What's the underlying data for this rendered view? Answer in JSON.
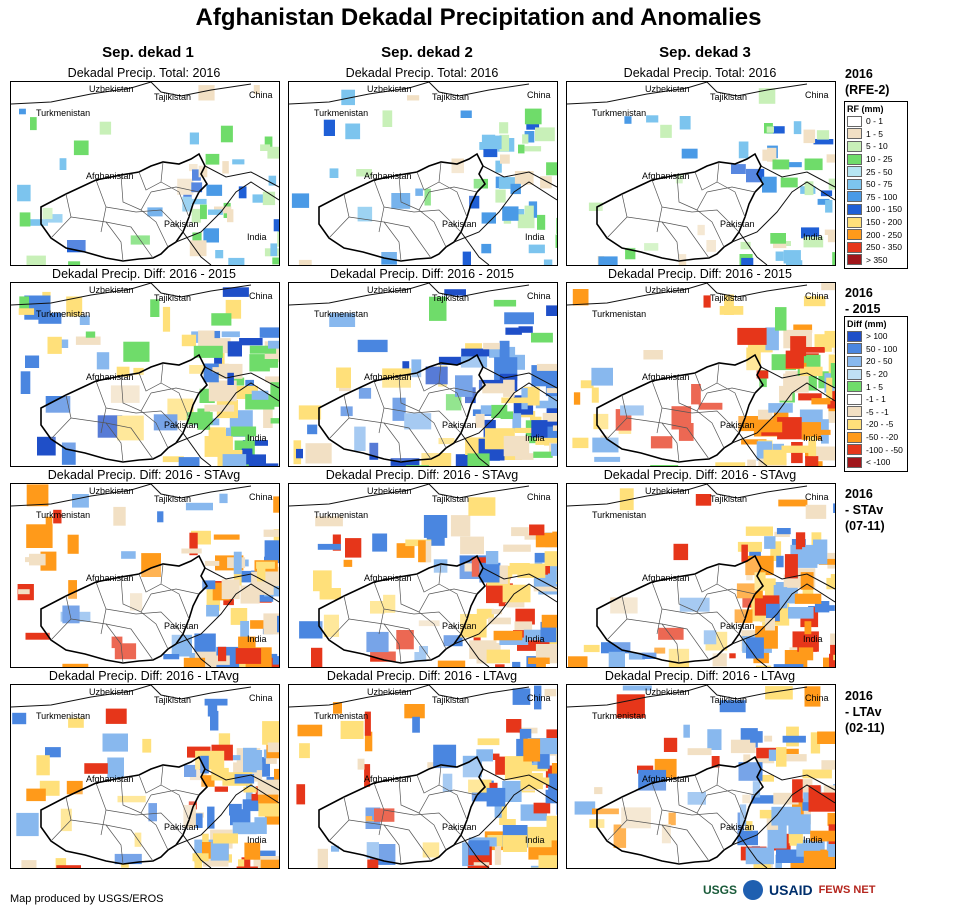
{
  "title": "Afghanistan Dekadal Precipitation and Anomalies",
  "columns": [
    "Sep. dekad 1",
    "Sep. dekad 2",
    "Sep. dekad 3"
  ],
  "rows": [
    {
      "caption": "Dekadal Precip. Total: 2016",
      "label_lines": [
        "2016",
        "(RFE-2)"
      ]
    },
    {
      "caption": "Dekadal Precip. Diff: 2016 - 2015",
      "label_lines": [
        "2016",
        "- 2015"
      ]
    },
    {
      "caption": "Dekadal Precip. Diff: 2016 - STAvg",
      "label_lines": [
        "2016",
        "- STAv",
        "(07-11)"
      ]
    },
    {
      "caption": "Dekadal Precip. Diff: 2016 - LTAvg",
      "label_lines": [
        "2016",
        "- LTAv",
        "(02-11)"
      ]
    }
  ],
  "country_labels": {
    "uzbekistan": "Uzbekistan",
    "tajikistan": "Tajikistan",
    "china": "China",
    "turkmenistan": "Turkmenistan",
    "afghanistan": "Afghanistan",
    "pakistan": "Pakistan",
    "india": "India"
  },
  "legend_rf": {
    "title": "RF (mm)",
    "items": [
      {
        "label": "0 - 1",
        "color": "#ffffff"
      },
      {
        "label": "1 - 5",
        "color": "#f2e0c4"
      },
      {
        "label": "5 - 10",
        "color": "#c8f0b8"
      },
      {
        "label": "10 - 25",
        "color": "#6fdc6a"
      },
      {
        "label": "25 - 50",
        "color": "#b6e6f2"
      },
      {
        "label": "50 - 75",
        "color": "#7cc4ee"
      },
      {
        "label": "75 - 100",
        "color": "#4a9ae6"
      },
      {
        "label": "100 - 150",
        "color": "#1f5fd6"
      },
      {
        "label": "150 - 200",
        "color": "#ffe07a"
      },
      {
        "label": "200 - 250",
        "color": "#ff9a1a"
      },
      {
        "label": "250 - 350",
        "color": "#e6361a"
      },
      {
        "label": "> 350",
        "color": "#a0151a"
      }
    ]
  },
  "legend_diff": {
    "title": "Diff (mm)",
    "items": [
      {
        "label": "> 100",
        "color": "#1f4fc8"
      },
      {
        "label": "50 - 100",
        "color": "#4a86e0"
      },
      {
        "label": "20 - 50",
        "color": "#88b8ee"
      },
      {
        "label": "5 - 20",
        "color": "#bfe0f4"
      },
      {
        "label": "1 - 5",
        "color": "#6fdc6a"
      },
      {
        "label": "-1 - 1",
        "color": "#ffffff"
      },
      {
        "label": "-5 - -1",
        "color": "#f2e0c4"
      },
      {
        "label": "-20 - -5",
        "color": "#ffe07a"
      },
      {
        "label": "-50 - -20",
        "color": "#ff9a1a"
      },
      {
        "label": "-100 - -50",
        "color": "#e6361a"
      },
      {
        "label": "< -100",
        "color": "#a0151a"
      }
    ]
  },
  "footer": "Map produced by USGS/EROS",
  "logos": [
    "USGS",
    "NOAA",
    "USAID",
    "FEWS NET"
  ],
  "palette": {
    "rf": [
      "#f2e0c4",
      "#c8f0b8",
      "#6fdc6a",
      "#7cc4ee",
      "#4a9ae6",
      "#1f5fd6"
    ],
    "dry": [
      "#f2e0c4",
      "#ffe07a",
      "#ff9a1a",
      "#e6361a"
    ],
    "wet": [
      "#6fdc6a",
      "#88b8ee",
      "#4a86e0",
      "#1f4fc8"
    ]
  }
}
